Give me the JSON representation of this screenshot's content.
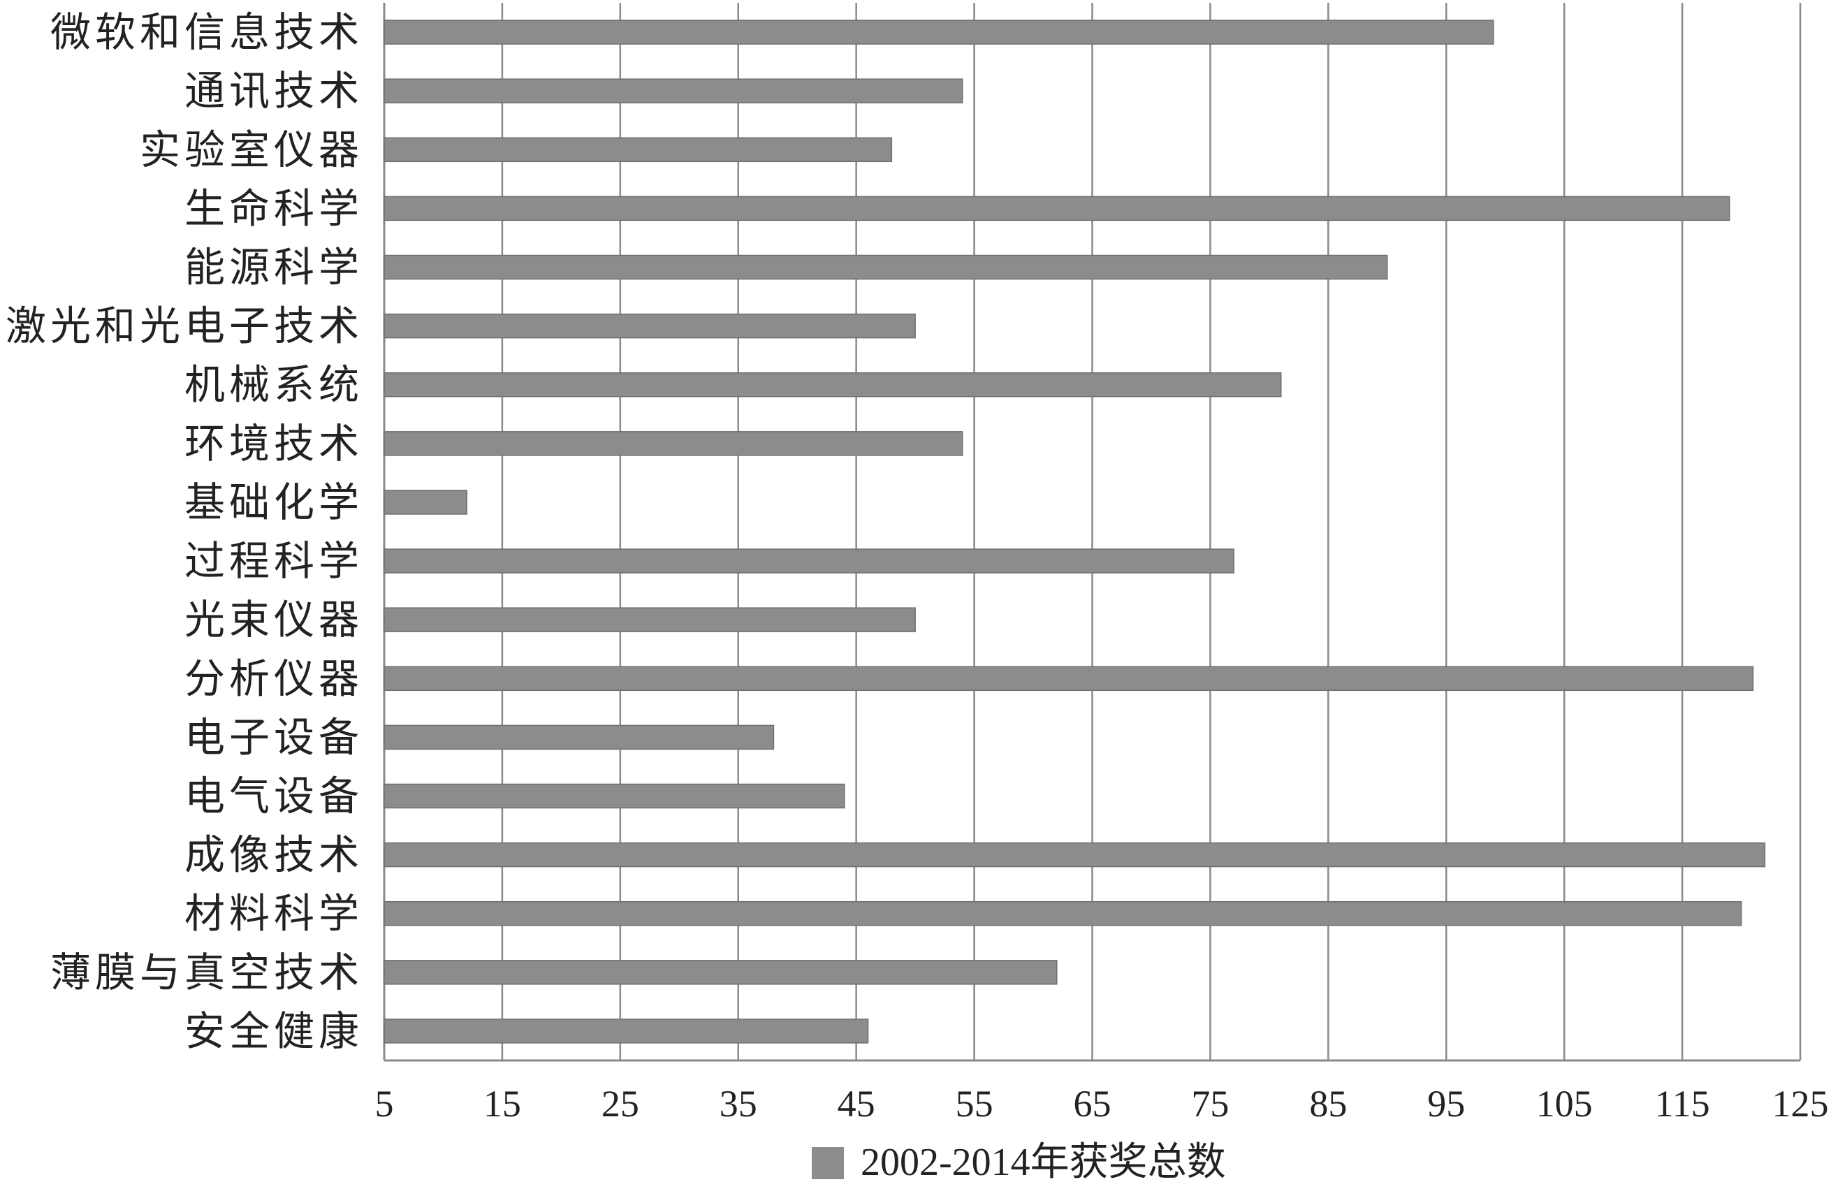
{
  "colors": {
    "bar": "#8c8c8c",
    "bar_edge": "#6f6f6f",
    "grid": "#8a8a8a",
    "text": "#222222"
  },
  "chart_data": {
    "type": "bar",
    "orientation": "horizontal",
    "categories": [
      "微软和信息技术",
      "通讯技术",
      "实验室仪器",
      "生命科学",
      "能源科学",
      "激光和光电子技术",
      "机械系统",
      "环境技术",
      "基础化学",
      "过程科学",
      "光束仪器",
      "分析仪器",
      "电子设备",
      "电气设备",
      "成像技术",
      "材料科学",
      "薄膜与真空技术",
      "安全健康"
    ],
    "series": [
      {
        "name": "2002-2014年获奖总数",
        "values": [
          99,
          54,
          48,
          119,
          90,
          50,
          81,
          54,
          12,
          77,
          50,
          121,
          38,
          44,
          122,
          120,
          62,
          46
        ]
      }
    ],
    "xlim": [
      5,
      125
    ],
    "xticks": [
      "5",
      "15",
      "25",
      "35",
      "45",
      "55",
      "65",
      "75",
      "85",
      "95",
      "105",
      "115",
      "125"
    ],
    "xtick_values": [
      5,
      15,
      25,
      35,
      45,
      55,
      65,
      75,
      85,
      95,
      105,
      115,
      125
    ],
    "grid": "vertical",
    "legend_position": "bottom-center",
    "title": "",
    "xlabel": "",
    "ylabel": ""
  }
}
